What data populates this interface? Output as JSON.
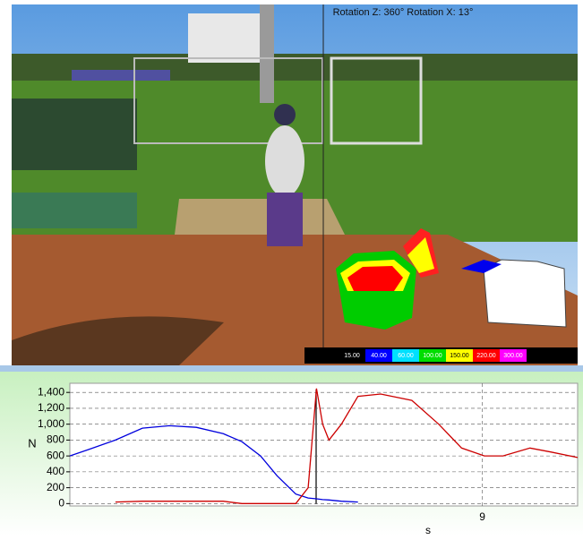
{
  "video": {
    "overlay_text": "Rotation Z: 360° Rotation X: 13°",
    "legend": [
      {
        "label": "15.00",
        "color": "#000000"
      },
      {
        "label": "40.00",
        "color": "#0000ff"
      },
      {
        "label": "60.00",
        "color": "#00e0ff"
      },
      {
        "label": "100.00",
        "color": "#00dd00"
      },
      {
        "label": "150.00",
        "color": "#ffff00"
      },
      {
        "label": "220.00",
        "color": "#ff0000"
      },
      {
        "label": "300.00",
        "color": "#ff00ff"
      }
    ]
  },
  "chart_data": {
    "type": "line",
    "y_label": "N",
    "x_label": "s",
    "x": [
      7.01,
      7.1,
      7.23,
      7.36,
      7.49,
      7.62,
      7.75,
      7.84,
      7.93,
      8.01,
      8.1,
      8.16,
      8.2,
      8.23,
      8.26,
      8.32,
      8.4,
      8.51,
      8.66,
      8.79,
      8.9,
      9.01,
      9.1,
      9.23,
      9.33,
      9.46
    ],
    "series": [
      {
        "color": "#0000dd",
        "values": [
          600,
          680,
          800,
          950,
          980,
          960,
          880,
          780,
          600,
          350,
          120,
          70,
          60,
          50,
          45,
          30,
          20,
          null,
          null,
          null,
          null,
          null,
          null,
          null,
          null,
          null
        ]
      },
      {
        "color": "#cc0000",
        "values": [
          null,
          null,
          20,
          30,
          30,
          30,
          30,
          0,
          0,
          0,
          0,
          200,
          1450,
          1000,
          800,
          1000,
          1350,
          1380,
          1300,
          1000,
          700,
          600,
          600,
          700,
          650,
          580
        ]
      }
    ],
    "xlim": [
      7.01,
      9.46
    ],
    "xticks": [
      9
    ],
    "ylim": [
      -30,
      1515
    ],
    "yticks": [
      0,
      200,
      400,
      600,
      800,
      {
        "value": 1000,
        "label": "1,000"
      },
      {
        "value": 1200,
        "label": "1,200"
      },
      {
        "value": 1400,
        "label": "1,400"
      }
    ],
    "grid": true
  }
}
